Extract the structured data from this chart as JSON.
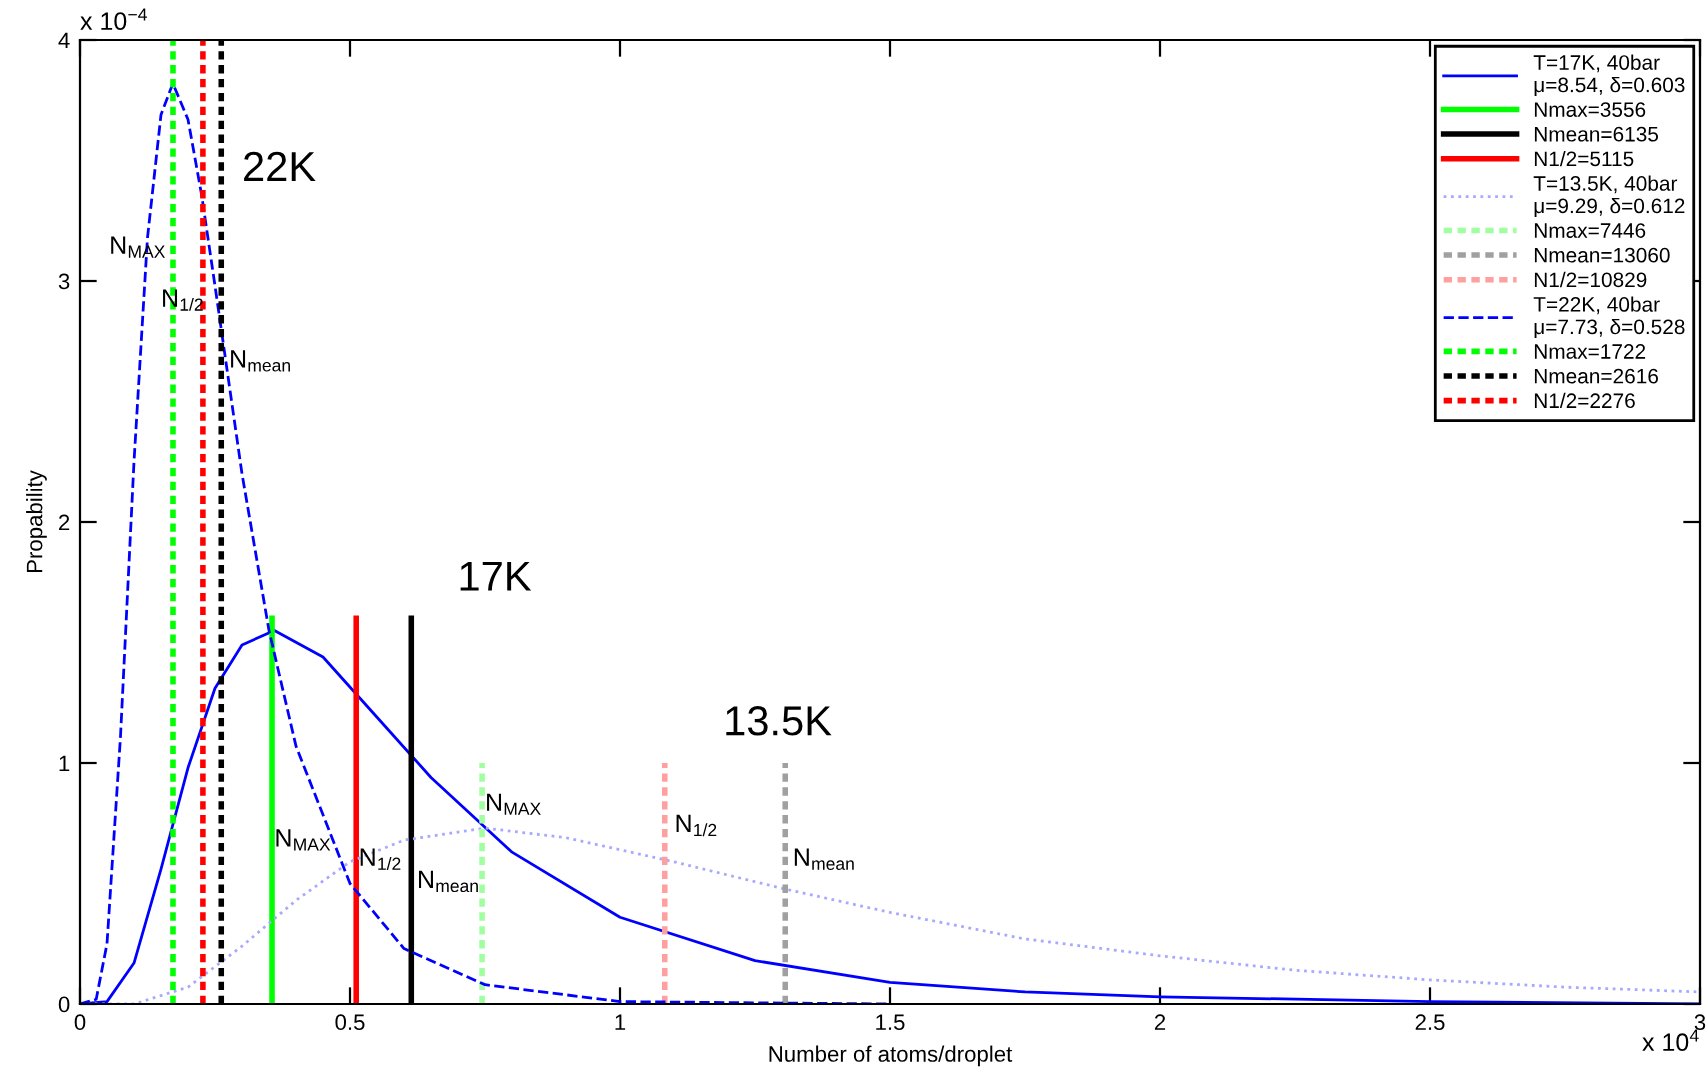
{
  "chart_data": {
    "type": "line",
    "xlabel": "Number of atoms/droplet",
    "ylabel": "Propability",
    "xlim": [
      0,
      3
    ],
    "ylim": [
      0,
      4
    ],
    "xticks": [
      0,
      0.5,
      1,
      1.5,
      2,
      2.5,
      3
    ],
    "yticks": [
      0,
      1,
      2,
      3,
      4
    ],
    "grid": false,
    "legend": "top right",
    "series": [
      {
        "name": "T=17K, 40bar\nμ=8.54, δ=0.603",
        "color": "#0000ff",
        "line_style": "solid",
        "x": [
          0,
          0.05,
          0.1,
          0.15,
          0.2,
          0.25,
          0.3,
          0.36,
          0.45,
          0.55,
          0.65,
          0.8,
          1.0,
          1.25,
          1.5,
          1.75,
          2.0,
          2.5,
          3.0
        ],
        "values": [
          0,
          0.01,
          0.17,
          0.56,
          0.98,
          1.31,
          1.49,
          1.55,
          1.44,
          1.19,
          0.94,
          0.63,
          0.36,
          0.18,
          0.09,
          0.05,
          0.03,
          0.01,
          0.0
        ]
      },
      {
        "name": "Nmax=3556",
        "color": "#00ff00",
        "line_style": "solid",
        "x": [
          0.3556,
          0.3556
        ],
        "values": [
          0,
          1.6
        ]
      },
      {
        "name": "Nmean=6135",
        "color": "#000000",
        "line_style": "solid",
        "x": [
          0.6135,
          0.6135
        ],
        "values": [
          0,
          1.6
        ]
      },
      {
        "name": "N1/2=5115",
        "color": "#ff0000",
        "line_style": "solid",
        "x": [
          0.5115,
          0.5115
        ],
        "values": [
          0,
          1.6
        ]
      },
      {
        "name": "T=13.5K, 40bar\nμ=9.29, δ=0.612",
        "color": "#a8a8ff",
        "line_style": "dotted",
        "x": [
          0,
          0.1,
          0.2,
          0.3,
          0.4,
          0.5,
          0.6,
          0.75,
          0.9,
          1.1,
          1.3,
          1.5,
          1.75,
          2.0,
          2.25,
          2.5,
          2.75,
          3.0
        ],
        "values": [
          0,
          0.0,
          0.07,
          0.24,
          0.43,
          0.59,
          0.68,
          0.73,
          0.69,
          0.59,
          0.48,
          0.38,
          0.27,
          0.2,
          0.14,
          0.1,
          0.07,
          0.05
        ]
      },
      {
        "name": "Nmax=7446",
        "color": "#a0ffa0",
        "line_style": "dotted",
        "x": [
          0.7446,
          0.7446
        ],
        "values": [
          0,
          1.0
        ]
      },
      {
        "name": "Nmean=13060",
        "color": "#a0a0a0",
        "line_style": "dotted",
        "x": [
          1.306,
          1.306
        ],
        "values": [
          0,
          1.0
        ]
      },
      {
        "name": "N1/2=10829",
        "color": "#ffa0a0",
        "line_style": "dotted",
        "x": [
          1.0829,
          1.0829
        ],
        "values": [
          0,
          1.0
        ]
      },
      {
        "name": "T=22K, 40bar\nμ=7.73, δ=0.528",
        "color": "#0000ff",
        "line_style": "dashed",
        "x": [
          0,
          0.03,
          0.05,
          0.075,
          0.1,
          0.125,
          0.15,
          0.172,
          0.2,
          0.225,
          0.25,
          0.3,
          0.35,
          0.4,
          0.5,
          0.6,
          0.75,
          1.0,
          1.5
        ],
        "values": [
          0,
          0.02,
          0.25,
          1.11,
          2.25,
          3.18,
          3.69,
          3.82,
          3.67,
          3.36,
          2.98,
          2.2,
          1.55,
          1.07,
          0.5,
          0.23,
          0.08,
          0.01,
          0.0
        ]
      },
      {
        "name": "Nmax=1722",
        "color": "#00ff00",
        "line_style": "dotted",
        "x": [
          0.1722,
          0.1722
        ],
        "values": [
          0,
          4
        ]
      },
      {
        "name": "Nmean=2616",
        "color": "#000000",
        "line_style": "dotted",
        "x": [
          0.2616,
          0.2616
        ],
        "values": [
          0,
          4
        ]
      },
      {
        "name": "N1/2=2276",
        "color": "#ff0000",
        "line_style": "dotted",
        "x": [
          0.2276,
          0.2276
        ],
        "values": [
          0,
          4
        ]
      }
    ],
    "annotations": [
      "x 10$^{−4}$",
      "x 10$^{4}$",
      "22K",
      "N$_{MAX}$",
      "N$_{1/2}$",
      "N$_{mean}$",
      "17K",
      "N$_{MAX}$",
      "N$_{1/2}$",
      "N$_{mean}$",
      "13.5K",
      "N$_{MAX}$",
      "N$_{1/2}$",
      "N$_{mean}$"
    ]
  }
}
